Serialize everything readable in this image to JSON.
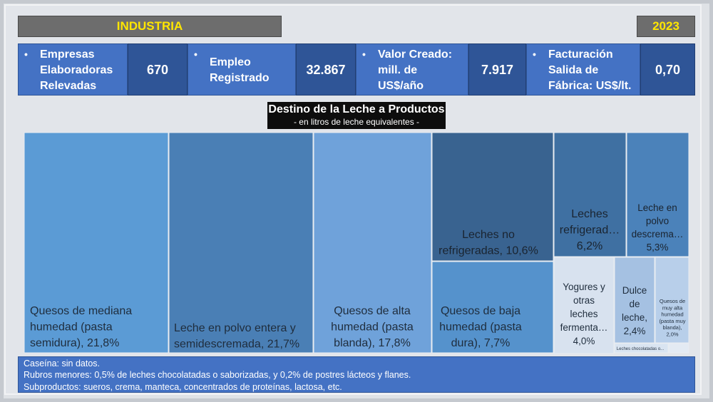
{
  "header": {
    "title": "INDUSTRIA",
    "year": "2023"
  },
  "kpis": [
    {
      "label": "Empresas\nElaboradoras\nRelevadas",
      "value": "670"
    },
    {
      "label": "Empleo\nRegistrado",
      "value": "32.867"
    },
    {
      "label": "Valor Creado:\nmill. de\nUS$/año",
      "value": "7.917"
    },
    {
      "label": "Facturación\nSalida de\nFábrica: US$/lt.",
      "value": "0,70"
    }
  ],
  "colors": {
    "accent": "#ffe600",
    "kpi_label": "#4472c4",
    "kpi_value": "#2f5597",
    "title_bg": "#0d0d0d"
  },
  "chart_data": {
    "type": "treemap",
    "title": "Destino de la Leche a Productos",
    "subtitle": "- en litros de leche equivalentes -",
    "unit": "%",
    "items": [
      {
        "name": "Quesos de mediana humedad (pasta semidura)",
        "label": "Quesos de mediana humedad (pasta semidura), 21,8%",
        "value": 21.8,
        "color": "#5b9bd5"
      },
      {
        "name": "Leche en polvo entera y semidescremada",
        "label": "Leche en polvo entera y semidescremada, 21,7%",
        "value": 21.7,
        "color": "#4a7fb5"
      },
      {
        "name": "Quesos de alta humedad (pasta blanda)",
        "label": "Quesos de alta humedad (pasta blanda), 17,8%",
        "value": 17.8,
        "color": "#6fa2da"
      },
      {
        "name": "Leches no refrigeradas",
        "label": "Leches no refrigeradas, 10,6%",
        "value": 10.6,
        "color": "#396390"
      },
      {
        "name": "Quesos de baja humedad (pasta dura)",
        "label": "Quesos de baja humedad (pasta dura), 7,7%",
        "value": 7.7,
        "color": "#5592cc"
      },
      {
        "name": "Leches refrigeradas",
        "label": "Leches refrigerad… 6,2%",
        "value": 6.2,
        "color": "#3f70a2"
      },
      {
        "name": "Leche en polvo descremada",
        "label": "Leche en polvo descrema… 5,3%",
        "value": 5.3,
        "color": "#4b82ba"
      },
      {
        "name": "Yogures y otras leches fermentadas",
        "label": "Yogures y otras leches fermenta… 4,0%",
        "value": 4.0,
        "color": "#d8e2ef"
      },
      {
        "name": "Dulce de leche",
        "label": "Dulce de leche, 2,4%",
        "value": 2.4,
        "color": "#a5c1e2"
      },
      {
        "name": "Quesos de muy alta humedad (pasta muy blanda)",
        "label": "Quesos de muy alta humedad (pasta muy blanda), 2,0%",
        "value": 2.0,
        "color": "#b8cfea"
      },
      {
        "name": "Leches chocolatadas",
        "label": "Leches chocolatadas o...",
        "value": 0.5,
        "color": "#d9e4f1"
      },
      {
        "name": "Postres lácteos",
        "label": "",
        "value": 0.2,
        "color": "#e3eaf3"
      }
    ]
  },
  "notes": [
    "Caseína: sin datos.",
    "Rubros menores: 0,5% de leches chocolatadas o saborizadas, y 0,2% de postres lácteos y flanes.",
    "Subproductos: sueros, crema, manteca, concentrados de proteínas, lactosa, etc."
  ]
}
